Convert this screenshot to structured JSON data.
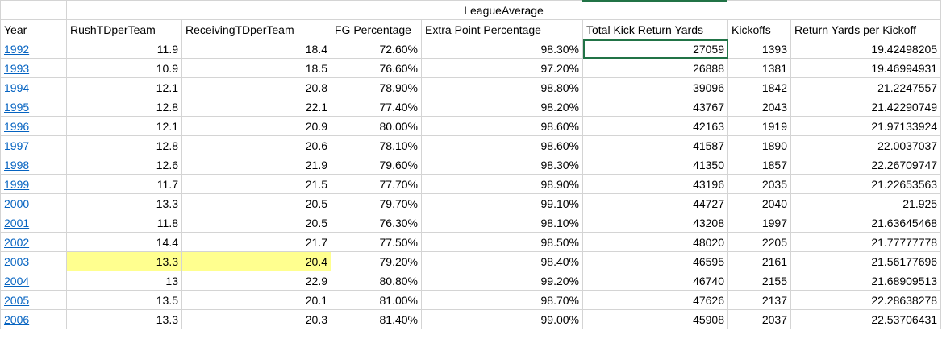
{
  "table": {
    "group_header": "LeagueAverage",
    "columns": [
      "Year",
      "RushTDperTeam",
      "ReceivingTDperTeam",
      "FG Percentage",
      "Extra Point Percentage",
      "Total Kick Return Yards",
      "Kickoffs",
      "Return Yards per Kickoff"
    ],
    "rows": [
      [
        "1992",
        "11.9",
        "18.4",
        "72.60%",
        "98.30%",
        "27059",
        "1393",
        "19.42498205"
      ],
      [
        "1993",
        "10.9",
        "18.5",
        "76.60%",
        "97.20%",
        "26888",
        "1381",
        "19.46994931"
      ],
      [
        "1994",
        "12.1",
        "20.8",
        "78.90%",
        "98.80%",
        "39096",
        "1842",
        "21.2247557"
      ],
      [
        "1995",
        "12.8",
        "22.1",
        "77.40%",
        "98.20%",
        "43767",
        "2043",
        "21.42290749"
      ],
      [
        "1996",
        "12.1",
        "20.9",
        "80.00%",
        "98.60%",
        "42163",
        "1919",
        "21.97133924"
      ],
      [
        "1997",
        "12.8",
        "20.6",
        "78.10%",
        "98.60%",
        "41587",
        "1890",
        "22.0037037"
      ],
      [
        "1998",
        "12.6",
        "21.9",
        "79.60%",
        "98.30%",
        "41350",
        "1857",
        "22.26709747"
      ],
      [
        "1999",
        "11.7",
        "21.5",
        "77.70%",
        "98.90%",
        "43196",
        "2035",
        "21.22653563"
      ],
      [
        "2000",
        "13.3",
        "20.5",
        "79.70%",
        "99.10%",
        "44727",
        "2040",
        "21.925"
      ],
      [
        "2001",
        "11.8",
        "20.5",
        "76.30%",
        "98.10%",
        "43208",
        "1997",
        "21.63645468"
      ],
      [
        "2002",
        "14.4",
        "21.7",
        "77.50%",
        "98.50%",
        "48020",
        "2205",
        "21.77777778"
      ],
      [
        "2003",
        "13.3",
        "20.4",
        "79.20%",
        "98.40%",
        "46595",
        "2161",
        "21.56177696"
      ],
      [
        "2004",
        "13",
        "22.9",
        "80.80%",
        "99.20%",
        "46740",
        "2155",
        "21.68909513"
      ],
      [
        "2005",
        "13.5",
        "20.1",
        "81.00%",
        "98.70%",
        "47626",
        "2137",
        "22.28638278"
      ],
      [
        "2006",
        "13.3",
        "20.3",
        "81.40%",
        "99.00%",
        "45908",
        "2037",
        "22.53706431"
      ]
    ]
  }
}
